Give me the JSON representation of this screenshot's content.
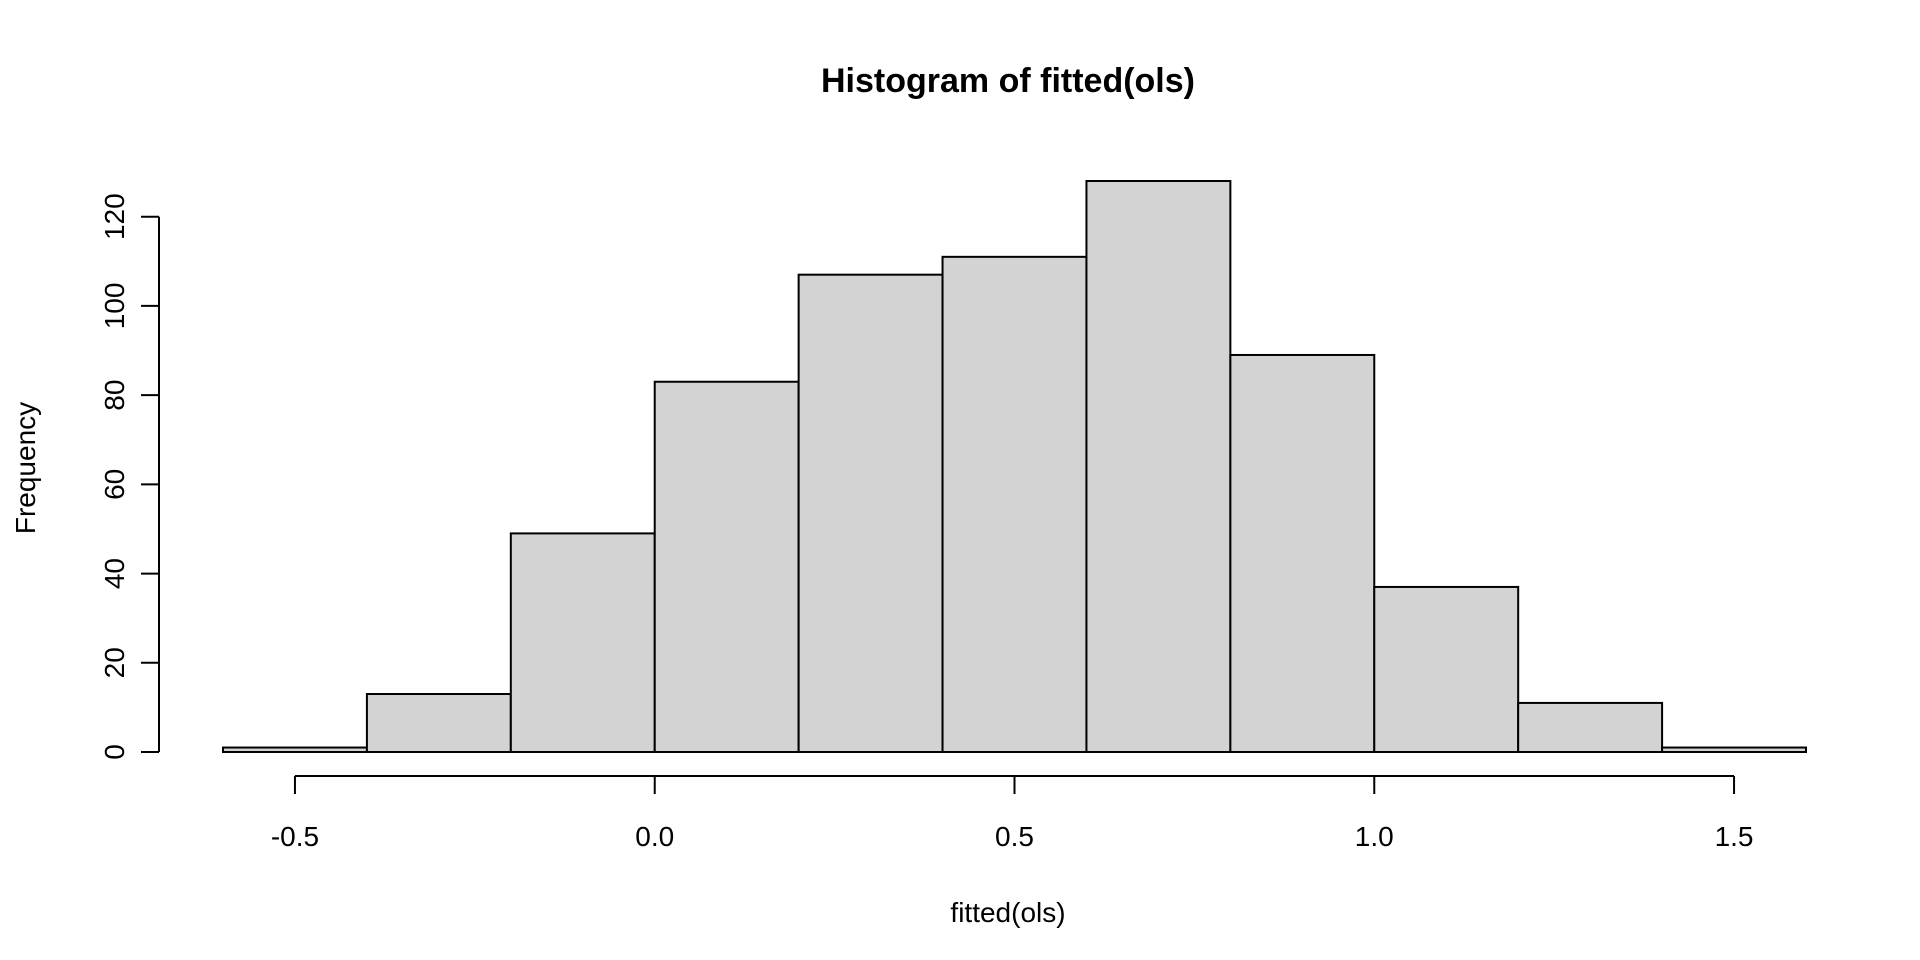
{
  "chart_data": {
    "type": "bar",
    "title": "Histogram of fitted(ols)",
    "xlabel": "fitted(ols)",
    "ylabel": "Frequency",
    "bins": [
      {
        "start": -0.6,
        "end": -0.4,
        "count": 1
      },
      {
        "start": -0.4,
        "end": -0.2,
        "count": 13
      },
      {
        "start": -0.2,
        "end": 0.0,
        "count": 49
      },
      {
        "start": 0.0,
        "end": 0.2,
        "count": 83
      },
      {
        "start": 0.2,
        "end": 0.4,
        "count": 107
      },
      {
        "start": 0.4,
        "end": 0.6,
        "count": 111
      },
      {
        "start": 0.6,
        "end": 0.8,
        "count": 128
      },
      {
        "start": 0.8,
        "end": 1.0,
        "count": 89
      },
      {
        "start": 1.0,
        "end": 1.2,
        "count": 37
      },
      {
        "start": 1.2,
        "end": 1.4,
        "count": 11
      },
      {
        "start": 1.4,
        "end": 1.6,
        "count": 1
      }
    ],
    "xticks": [
      -0.5,
      0.0,
      0.5,
      1.0,
      1.5
    ],
    "xtick_labels": [
      "-0.5",
      "0.0",
      "0.5",
      "1.0",
      "1.5"
    ],
    "yticks": [
      0,
      20,
      40,
      60,
      80,
      100,
      120
    ],
    "ytick_labels": [
      "0",
      "20",
      "40",
      "60",
      "80",
      "100",
      "120"
    ],
    "xlim": [
      -0.6,
      1.6
    ],
    "ylim": [
      0,
      128
    ],
    "grid": false,
    "colors": {
      "bar_fill": "#d3d3d3",
      "bar_stroke": "#000000"
    }
  }
}
